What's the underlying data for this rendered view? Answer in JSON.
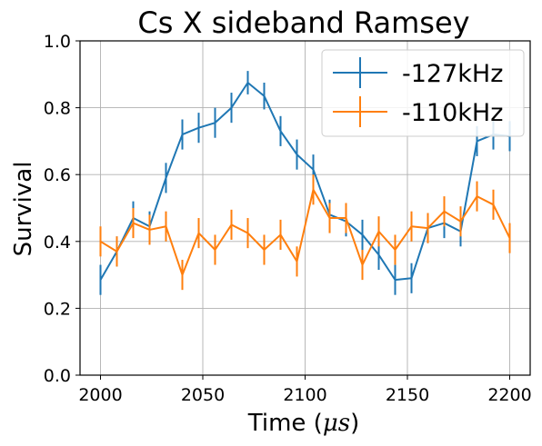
{
  "chart_data": {
    "type": "line",
    "title": "Cs X sideband Ramsey",
    "xlabel_main": "Time (",
    "xlabel_unit": "μs",
    "xlabel_close": ")",
    "ylabel": "Survival",
    "xlim": [
      1990,
      2210
    ],
    "ylim": [
      0.0,
      1.0
    ],
    "xticks": [
      2000,
      2050,
      2100,
      2150,
      2200
    ],
    "yticks": [
      0.0,
      0.2,
      0.4,
      0.6,
      0.8,
      1.0
    ],
    "ytick_labels": [
      "0.0",
      "0.2",
      "0.4",
      "0.6",
      "0.8",
      "1.0"
    ],
    "grid": true,
    "legend_position": "top-right",
    "x": [
      2000,
      2008,
      2016,
      2024,
      2032,
      2040,
      2048,
      2056,
      2064,
      2072,
      2080,
      2088,
      2096,
      2104,
      2112,
      2120,
      2128,
      2136,
      2144,
      2152,
      2160,
      2168,
      2176,
      2184,
      2192,
      2200
    ],
    "series": [
      {
        "name": "-127kHz",
        "color": "#1f77b4",
        "values": [
          0.285,
          0.37,
          0.47,
          0.445,
          0.59,
          0.72,
          0.74,
          0.755,
          0.8,
          0.875,
          0.835,
          0.73,
          0.66,
          0.615,
          0.48,
          0.46,
          0.42,
          0.36,
          0.285,
          0.29,
          0.44,
          0.455,
          0.43,
          0.7,
          0.72,
          0.715
        ],
        "errors": [
          0.045,
          0.045,
          0.05,
          0.045,
          0.045,
          0.045,
          0.045,
          0.045,
          0.045,
          0.035,
          0.04,
          0.045,
          0.045,
          0.045,
          0.045,
          0.045,
          0.045,
          0.045,
          0.045,
          0.045,
          0.045,
          0.045,
          0.045,
          0.045,
          0.045,
          0.045
        ]
      },
      {
        "name": "-110kHz",
        "color": "#ff7f0e",
        "values": [
          0.4,
          0.37,
          0.455,
          0.435,
          0.445,
          0.3,
          0.425,
          0.375,
          0.45,
          0.425,
          0.375,
          0.42,
          0.34,
          0.555,
          0.47,
          0.47,
          0.33,
          0.43,
          0.375,
          0.445,
          0.44,
          0.49,
          0.46,
          0.535,
          0.51,
          0.41
        ],
        "errors": [
          0.045,
          0.045,
          0.045,
          0.045,
          0.045,
          0.045,
          0.045,
          0.045,
          0.045,
          0.045,
          0.045,
          0.045,
          0.045,
          0.045,
          0.045,
          0.045,
          0.045,
          0.045,
          0.045,
          0.045,
          0.045,
          0.045,
          0.045,
          0.045,
          0.045,
          0.045
        ]
      }
    ]
  }
}
